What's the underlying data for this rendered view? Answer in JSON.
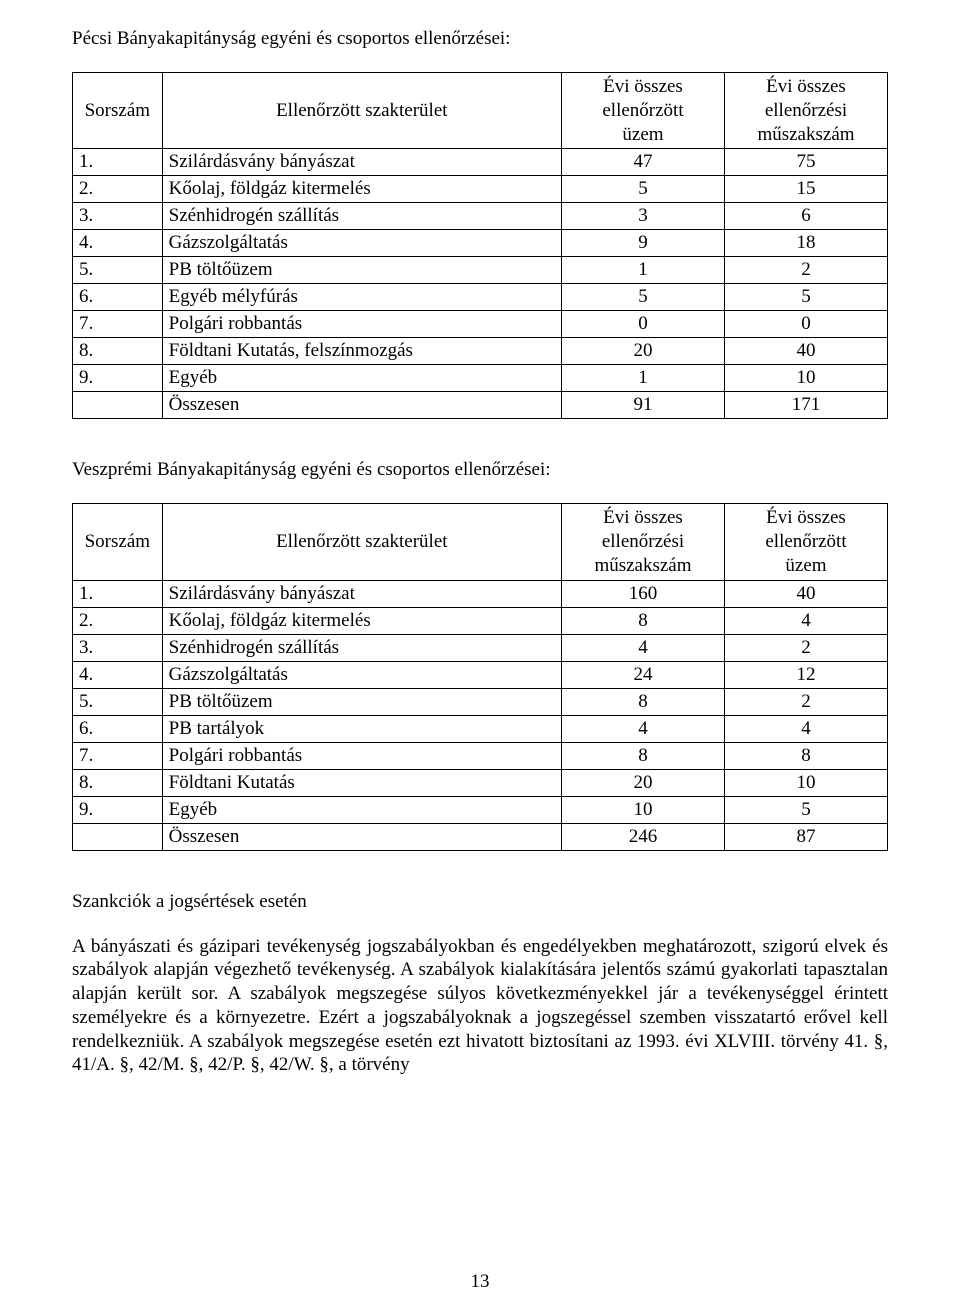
{
  "section1": {
    "title": "Pécsi Bányakapitányság egyéni és csoportos ellenőrzései:",
    "columns": {
      "num": "Sorszám",
      "area": "Ellenőrzött szakterület",
      "col3": "Évi összes\nellenőrzött\nüzem",
      "col4": "Évi összes\nellenőrzési\nműszakszám"
    },
    "rows": [
      {
        "n": "1.",
        "area": "Szilárdásvány bányászat",
        "v1": "47",
        "v2": "75"
      },
      {
        "n": "2.",
        "area": "Kőolaj, földgáz kitermelés",
        "v1": "5",
        "v2": "15"
      },
      {
        "n": "3.",
        "area": "Szénhidrogén szállítás",
        "v1": "3",
        "v2": "6"
      },
      {
        "n": "4.",
        "area": "Gázszolgáltatás",
        "v1": "9",
        "v2": "18"
      },
      {
        "n": "5.",
        "area": "PB töltőüzem",
        "v1": "1",
        "v2": "2"
      },
      {
        "n": "6.",
        "area": "Egyéb mélyfúrás",
        "v1": "5",
        "v2": "5"
      },
      {
        "n": "7.",
        "area": "Polgári robbantás",
        "v1": "0",
        "v2": "0"
      },
      {
        "n": "8.",
        "area": "Földtani Kutatás, felszínmozgás",
        "v1": "20",
        "v2": "40"
      },
      {
        "n": "9.",
        "area": "Egyéb",
        "v1": "1",
        "v2": "10"
      }
    ],
    "total": {
      "n": "",
      "area": "Összesen",
      "v1": "91",
      "v2": "171"
    }
  },
  "section2": {
    "title": "Veszprémi Bányakapitányság egyéni és csoportos ellenőrzései:",
    "columns": {
      "num": "Sorszám",
      "area": "Ellenőrzött szakterület",
      "col3": "Évi összes\nellenőrzési\nműszakszám",
      "col4": "Évi összes\nellenőrzött\nüzem"
    },
    "rows": [
      {
        "n": "1.",
        "area": "Szilárdásvány bányászat",
        "v1": "160",
        "v2": "40"
      },
      {
        "n": "2.",
        "area": "Kőolaj, földgáz kitermelés",
        "v1": "8",
        "v2": "4"
      },
      {
        "n": "3.",
        "area": "Szénhidrogén szállítás",
        "v1": "4",
        "v2": "2"
      },
      {
        "n": "4.",
        "area": "Gázszolgáltatás",
        "v1": "24",
        "v2": "12"
      },
      {
        "n": "5.",
        "area": "PB töltőüzem",
        "v1": "8",
        "v2": "2"
      },
      {
        "n": "6.",
        "area": "PB tartályok",
        "v1": "4",
        "v2": "4"
      },
      {
        "n": "7.",
        "area": "Polgári robbantás",
        "v1": "8",
        "v2": "8"
      },
      {
        "n": "8.",
        "area": "Földtani Kutatás",
        "v1": "20",
        "v2": "10"
      },
      {
        "n": "9.",
        "area": "Egyéb",
        "v1": "10",
        "v2": "5"
      }
    ],
    "total": {
      "n": "",
      "area": "Összesen",
      "v1": "246",
      "v2": "87"
    }
  },
  "sanctions": {
    "heading": "Szankciók a jogsértések esetén",
    "paragraph": "A bányászati és gázipari tevékenység jogszabályokban és engedélyekben meghatározott, szigorú elvek és szabályok alapján végezhető tevékenység. A szabályok kialakítására jelentős számú gyakorlati tapasztalan alapján került sor. A szabályok megszegése súlyos következményekkel jár a tevékenységgel érintett személyekre és a környezetre. Ezért a jogszabályoknak a jogszegéssel szemben visszatartó erővel kell rendelkezniük. A szabályok megszegése esetén ezt hivatott biztosítani az 1993. évi XLVIII. törvény 41. §, 41/A. §, 42/M. §, 42/P. §, 42/W. §, a törvény"
  },
  "page_number": "13"
}
